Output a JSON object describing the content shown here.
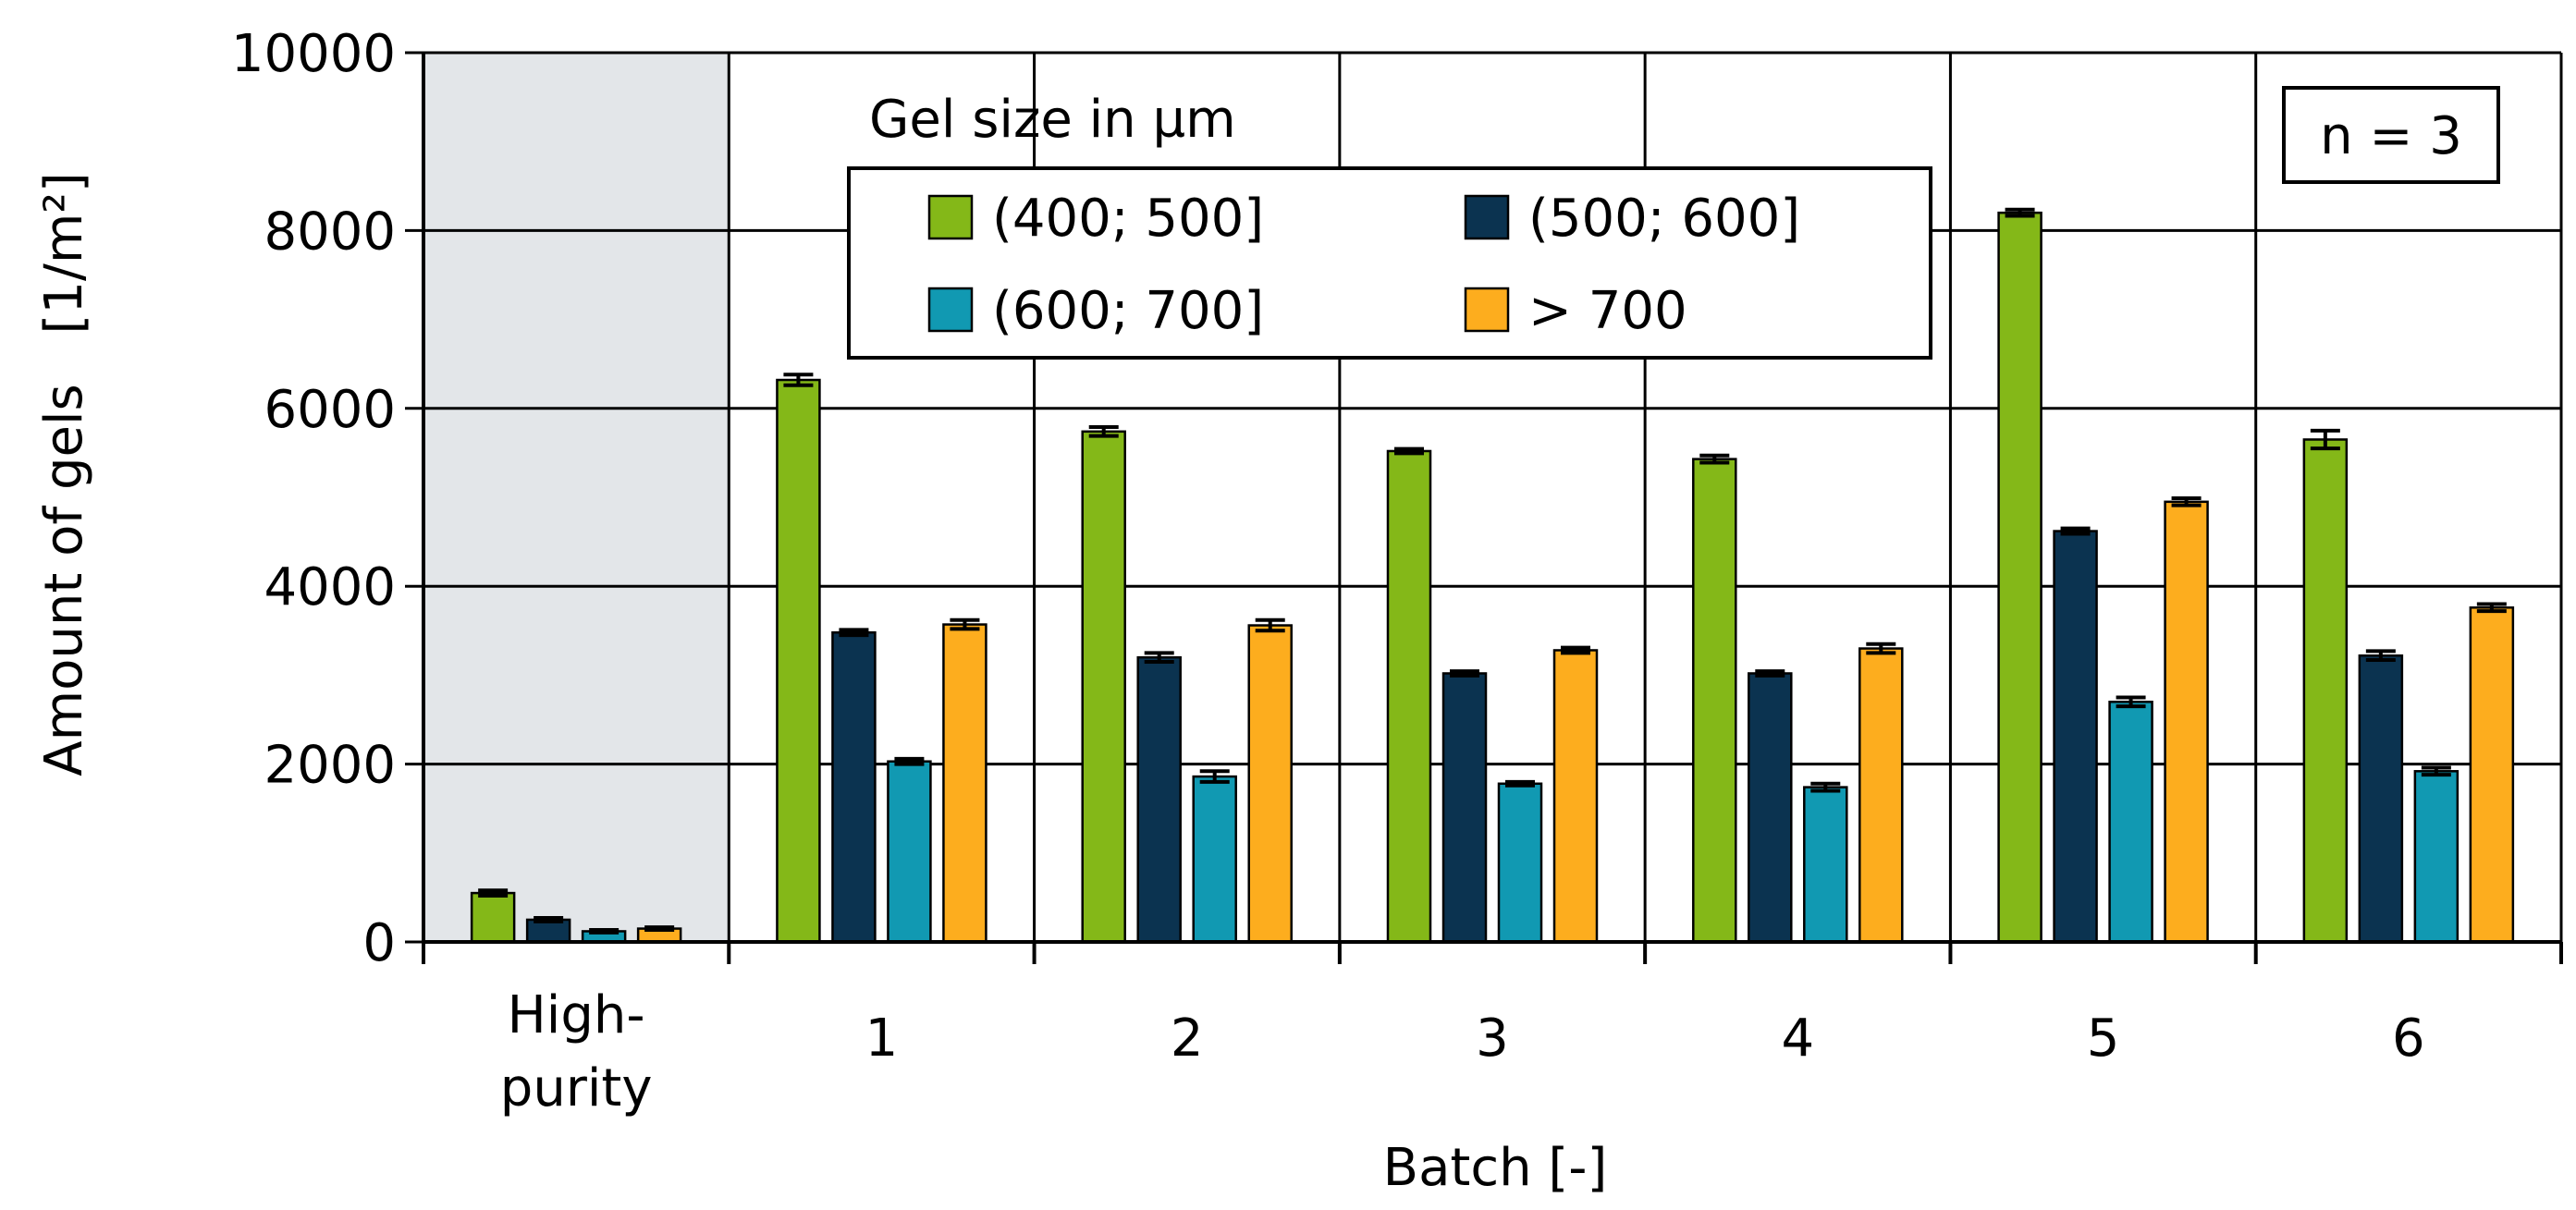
{
  "chart_data": {
    "type": "bar",
    "title": "",
    "xlabel": "Batch [-]",
    "ylabel": "Amount of gels",
    "ylabel_unit": "[1/m²]",
    "ylim": [
      0,
      10000
    ],
    "yticks": [
      "0",
      "2000",
      "4000",
      "6000",
      "8000",
      "10000"
    ],
    "grid": true,
    "categories": [
      "High-\npurity",
      "1",
      "2",
      "3",
      "4",
      "5",
      "6"
    ],
    "category_labels": [
      [
        "High-",
        "purity"
      ],
      [
        "1"
      ],
      [
        "2"
      ],
      [
        "3"
      ],
      [
        "4"
      ],
      [
        "5"
      ],
      [
        "6"
      ]
    ],
    "highlighted_category": "High-purity",
    "legend": {
      "title": "Gel size in µm",
      "placement": "top-center"
    },
    "annotation": "n = 3",
    "series": [
      {
        "name": "(400; 500]",
        "color": "#84b818",
        "values": [
          550,
          6320,
          5740,
          5520,
          5430,
          8200,
          5650
        ],
        "errors": [
          30,
          60,
          50,
          25,
          40,
          35,
          100
        ]
      },
      {
        "name": "(500; 600]",
        "color": "#0b3350",
        "values": [
          250,
          3480,
          3200,
          3020,
          3020,
          4620,
          3220
        ],
        "errors": [
          20,
          30,
          50,
          25,
          25,
          30,
          50
        ]
      },
      {
        "name": "(600; 700]",
        "color": "#1199b2",
        "values": [
          120,
          2030,
          1860,
          1780,
          1740,
          2700,
          1920
        ],
        "errors": [
          15,
          30,
          60,
          20,
          40,
          50,
          40
        ]
      },
      {
        "name": "> 700",
        "color": "#fdad1e",
        "values": [
          150,
          3570,
          3560,
          3280,
          3300,
          4950,
          3760
        ],
        "errors": [
          15,
          50,
          60,
          30,
          50,
          40,
          40
        ]
      }
    ]
  }
}
